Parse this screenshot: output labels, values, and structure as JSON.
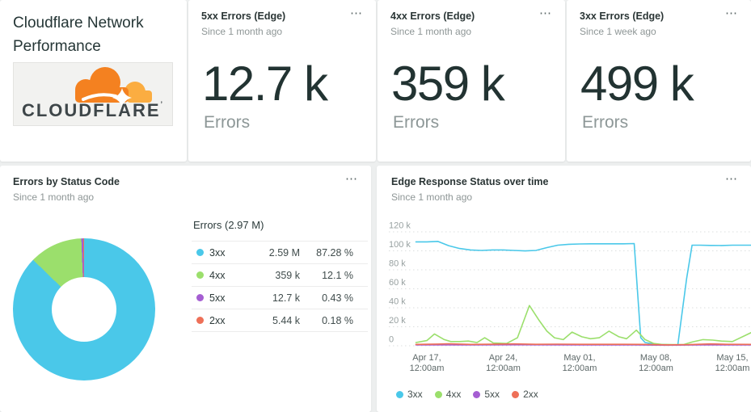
{
  "ui": {
    "menu_icon": "⋯"
  },
  "title_card": {
    "title": "Cloudflare Network Performance",
    "logo_text": "CLOUDFLARE"
  },
  "stat_cards": [
    {
      "title": "5xx Errors (Edge)",
      "subtitle": "Since 1 month ago",
      "value": "12.7 k",
      "unit": "Errors"
    },
    {
      "title": "4xx Errors (Edge)",
      "subtitle": "Since 1 month ago",
      "value": "359 k",
      "unit": "Errors"
    },
    {
      "title": "3xx Errors (Edge)",
      "subtitle": "Since 1 week ago",
      "value": "499 k",
      "unit": "Errors"
    }
  ],
  "pie_card": {
    "title": "Errors by Status Code",
    "subtitle": "Since 1 month ago"
  },
  "line_card": {
    "title": "Edge Response Status over time",
    "subtitle": "Since 1 month ago"
  },
  "chart_data": [
    {
      "type": "pie",
      "title": "Errors by Status Code",
      "total_label": "Errors (2.97 M)",
      "slices": [
        {
          "label": "3xx",
          "value": "2.59 M",
          "pct": 87.28,
          "pct_label": "87.28 %",
          "color": "#4ac8e9"
        },
        {
          "label": "4xx",
          "value": "359 k",
          "pct": 12.1,
          "pct_label": "12.1 %",
          "color": "#9bdf6c"
        },
        {
          "label": "5xx",
          "value": "12.7 k",
          "pct": 0.43,
          "pct_label": "0.43 %",
          "color": "#a55ed2"
        },
        {
          "label": "2xx",
          "value": "5.44 k",
          "pct": 0.18,
          "pct_label": "0.18 %",
          "color": "#ee7058"
        }
      ]
    },
    {
      "type": "line",
      "title": "Edge Response Status over time",
      "x_unit": "days since Apr 16, values in thousands of errors",
      "ylim": [
        0,
        120
      ],
      "yticks": [
        {
          "v": 120,
          "label": "120 k"
        },
        {
          "v": 100,
          "label": "100 k"
        },
        {
          "v": 80,
          "label": "80 k"
        },
        {
          "v": 60,
          "label": "60 k"
        },
        {
          "v": 40,
          "label": "40 k"
        },
        {
          "v": 20,
          "label": "20 k"
        },
        {
          "v": 0,
          "label": "0"
        }
      ],
      "xticks": [
        {
          "day": 1,
          "label": [
            "Apr 17,",
            "12:00am"
          ]
        },
        {
          "day": 8,
          "label": [
            "Apr 24,",
            "12:00am"
          ]
        },
        {
          "day": 15,
          "label": [
            "May 01,",
            "12:00am"
          ]
        },
        {
          "day": 22,
          "label": [
            "May 08,",
            "12:00am"
          ]
        },
        {
          "day": 29,
          "label": [
            "May 15,",
            "12:00am"
          ]
        }
      ],
      "series": [
        {
          "name": "3xx",
          "color": "#4ac8e9",
          "points": [
            [
              0,
              109
            ],
            [
              1,
              109
            ],
            [
              2,
              109.5
            ],
            [
              3,
              105
            ],
            [
              4,
              102
            ],
            [
              5,
              100.5
            ],
            [
              6,
              100
            ],
            [
              7,
              100.5
            ],
            [
              8,
              100.5
            ],
            [
              9,
              100
            ],
            [
              10,
              99.5
            ],
            [
              11,
              100
            ],
            [
              12,
              103
            ],
            [
              13,
              105.5
            ],
            [
              14,
              106.5
            ],
            [
              15,
              106.8
            ],
            [
              16,
              107
            ],
            [
              17,
              107
            ],
            [
              18,
              107
            ],
            [
              19,
              107
            ],
            [
              20,
              107.2
            ],
            [
              20.6,
              8
            ],
            [
              21,
              3
            ],
            [
              22,
              1
            ],
            [
              23,
              0.7
            ],
            [
              24,
              0.6
            ],
            [
              24.8,
              70
            ],
            [
              25.3,
              105.5
            ],
            [
              26,
              105.5
            ],
            [
              27,
              105.3
            ],
            [
              28,
              105.2
            ],
            [
              29,
              105.5
            ],
            [
              31,
              105.5
            ]
          ]
        },
        {
          "name": "4xx",
          "color": "#9bdf6c",
          "points": [
            [
              0,
              3
            ],
            [
              1,
              5
            ],
            [
              1.7,
              12
            ],
            [
              2.6,
              6
            ],
            [
              3.2,
              4
            ],
            [
              4,
              4
            ],
            [
              4.8,
              4.5
            ],
            [
              5.6,
              3
            ],
            [
              6.3,
              8
            ],
            [
              7.1,
              2.5
            ],
            [
              8.3,
              2
            ],
            [
              9.3,
              8
            ],
            [
              10.4,
              42
            ],
            [
              11.3,
              26
            ],
            [
              12,
              15
            ],
            [
              12.7,
              8
            ],
            [
              13.5,
              6
            ],
            [
              14.3,
              14
            ],
            [
              15.2,
              9
            ],
            [
              16,
              7
            ],
            [
              16.8,
              8
            ],
            [
              17.7,
              15
            ],
            [
              18.6,
              9
            ],
            [
              19.3,
              7
            ],
            [
              20.2,
              16
            ],
            [
              21,
              6
            ],
            [
              21.8,
              2
            ],
            [
              22.5,
              1
            ],
            [
              23.5,
              0.8
            ],
            [
              24.5,
              0.8
            ],
            [
              25.3,
              3.5
            ],
            [
              26.3,
              6
            ],
            [
              27.2,
              5.5
            ],
            [
              28,
              4.5
            ],
            [
              29,
              4
            ],
            [
              31,
              15
            ]
          ]
        },
        {
          "name": "5xx",
          "color": "#a55ed2",
          "points": [
            [
              0,
              0.5
            ],
            [
              5,
              0.5
            ],
            [
              10,
              0.6
            ],
            [
              15,
              0.5
            ],
            [
              20,
              0.5
            ],
            [
              23,
              0.2
            ],
            [
              26,
              0.4
            ],
            [
              31,
              0.5
            ]
          ]
        },
        {
          "name": "2xx",
          "color": "#ee7058",
          "points": [
            [
              0,
              1
            ],
            [
              2,
              1.4
            ],
            [
              3,
              1.7
            ],
            [
              5,
              1
            ],
            [
              7,
              1.2
            ],
            [
              9,
              1.5
            ],
            [
              11,
              1.1
            ],
            [
              13,
              1.3
            ],
            [
              15,
              1.1
            ],
            [
              17,
              1.1
            ],
            [
              19,
              1.1
            ],
            [
              21,
              1
            ],
            [
              23,
              0.5
            ],
            [
              25,
              0.8
            ],
            [
              27,
              1.5
            ],
            [
              28.5,
              1.1
            ],
            [
              31,
              1
            ]
          ]
        }
      ],
      "legend": [
        "3xx",
        "4xx",
        "5xx",
        "2xx"
      ],
      "legend_position": "bottom",
      "grid": "dotted-horizontal"
    }
  ]
}
